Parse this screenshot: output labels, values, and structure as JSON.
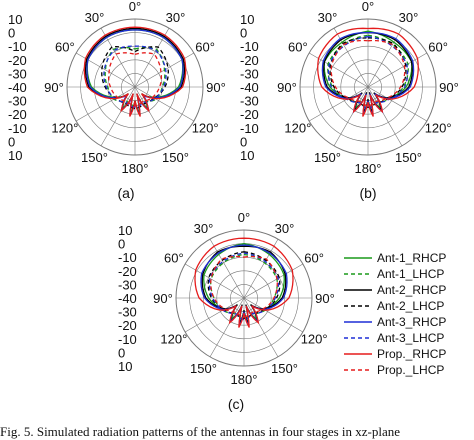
{
  "chart_data": [
    {
      "type": "polar-line",
      "panel": "(a)",
      "r_ticks": [
        "10",
        "0",
        "-10",
        "-20",
        "-30",
        "-40",
        "-30",
        "-20",
        "-10",
        "0",
        "10"
      ],
      "r_range": [
        -40,
        10
      ],
      "angle_labels": [
        "0°",
        "30°",
        "60°",
        "90°",
        "120°",
        "150°",
        "180°",
        "150°",
        "120°",
        "90°",
        "60°",
        "30°"
      ],
      "series": [
        {
          "key": "ant1_rhcp",
          "angles": [
            0,
            30,
            60,
            90,
            120,
            135,
            150,
            165,
            170,
            180,
            190,
            195,
            210,
            225,
            240,
            270,
            300,
            330,
            360
          ],
          "values": [
            2,
            2,
            0,
            -8,
            -25,
            -32,
            -22,
            -34,
            -20,
            -30,
            -20,
            -34,
            -22,
            -32,
            -25,
            -8,
            0,
            2,
            2
          ]
        },
        {
          "key": "ant1_lhcp",
          "angles": [
            0,
            30,
            60,
            90,
            120,
            150,
            180,
            210,
            240,
            270,
            300,
            330,
            360
          ],
          "values": [
            -12,
            -8,
            -15,
            -20,
            -22,
            -28,
            -26,
            -28,
            -22,
            -20,
            -15,
            -8,
            -12
          ]
        },
        {
          "key": "ant2_rhcp",
          "angles": [
            0,
            30,
            60,
            90,
            120,
            135,
            150,
            165,
            170,
            180,
            190,
            195,
            210,
            225,
            240,
            270,
            300,
            330,
            360
          ],
          "values": [
            3,
            3,
            1,
            -6,
            -24,
            -33,
            -20,
            -35,
            -19,
            -30,
            -19,
            -35,
            -20,
            -33,
            -24,
            -6,
            1,
            3,
            3
          ]
        },
        {
          "key": "ant2_lhcp",
          "angles": [
            0,
            30,
            60,
            90,
            120,
            150,
            180,
            210,
            240,
            270,
            300,
            330,
            360
          ],
          "values": [
            -14,
            -6,
            -12,
            -18,
            -24,
            -26,
            -24,
            -26,
            -24,
            -18,
            -12,
            -6,
            -14
          ]
        },
        {
          "key": "ant3_rhcp",
          "angles": [
            0,
            30,
            60,
            90,
            120,
            135,
            150,
            165,
            170,
            180,
            190,
            195,
            210,
            225,
            240,
            270,
            300,
            330,
            360
          ],
          "values": [
            2,
            2,
            0,
            -7,
            -24,
            -31,
            -21,
            -33,
            -19,
            -29,
            -19,
            -33,
            -21,
            -31,
            -24,
            -7,
            0,
            2,
            2
          ]
        },
        {
          "key": "ant3_lhcp",
          "angles": [
            0,
            30,
            60,
            90,
            120,
            150,
            180,
            210,
            240,
            270,
            300,
            330,
            360
          ],
          "values": [
            -10,
            -9,
            -14,
            -19,
            -23,
            -27,
            -25,
            -27,
            -23,
            -19,
            -14,
            -9,
            -10
          ]
        },
        {
          "key": "prop_rhcp",
          "angles": [
            0,
            30,
            60,
            90,
            120,
            135,
            150,
            165,
            170,
            180,
            190,
            195,
            210,
            225,
            240,
            270,
            300,
            330,
            360
          ],
          "values": [
            4,
            4,
            2,
            -5,
            -23,
            -33,
            -20,
            -35,
            -18,
            -30,
            -18,
            -35,
            -20,
            -33,
            -23,
            -5,
            2,
            4,
            4
          ]
        },
        {
          "key": "prop_lhcp",
          "angles": [
            0,
            30,
            60,
            90,
            120,
            150,
            180,
            210,
            240,
            270,
            300,
            330,
            360
          ],
          "values": [
            -16,
            -12,
            -18,
            -22,
            -25,
            -28,
            -26,
            -28,
            -25,
            -22,
            -18,
            -12,
            -16
          ]
        }
      ]
    },
    {
      "type": "polar-line",
      "panel": "(b)",
      "r_ticks": [
        "10",
        "0",
        "-10",
        "-20",
        "-30",
        "-40",
        "-30",
        "-20",
        "-10",
        "0",
        "10"
      ],
      "r_range": [
        -40,
        10
      ],
      "angle_labels": [
        "0°",
        "30°",
        "60°",
        "90°",
        "120°",
        "150°",
        "180°",
        "150°",
        "120°",
        "90°",
        "60°",
        "30°"
      ],
      "series": [
        {
          "key": "ant1_rhcp",
          "angles": [
            0,
            30,
            60,
            90,
            120,
            135,
            150,
            165,
            170,
            180,
            190,
            195,
            210,
            225,
            240,
            270,
            300,
            330,
            360
          ],
          "values": [
            1,
            -2,
            -3,
            -12,
            -24,
            -32,
            -22,
            -34,
            -21,
            -31,
            -21,
            -34,
            -22,
            -32,
            -24,
            -12,
            -3,
            -2,
            1
          ]
        },
        {
          "key": "ant1_lhcp",
          "angles": [
            0,
            30,
            60,
            90,
            120,
            150,
            180,
            210,
            240,
            270,
            300,
            330,
            360
          ],
          "values": [
            -2,
            -4,
            -6,
            -14,
            -22,
            -28,
            -26,
            -28,
            -22,
            -14,
            -6,
            -4,
            -2
          ]
        },
        {
          "key": "ant2_rhcp",
          "angles": [
            0,
            30,
            60,
            90,
            120,
            135,
            150,
            165,
            170,
            180,
            190,
            195,
            210,
            225,
            240,
            270,
            300,
            330,
            360
          ],
          "values": [
            0,
            0,
            -3,
            -10,
            -24,
            -34,
            -20,
            -36,
            -20,
            -31,
            -20,
            -36,
            -20,
            -34,
            -24,
            -10,
            -3,
            0,
            0
          ]
        },
        {
          "key": "ant2_lhcp",
          "angles": [
            0,
            30,
            60,
            90,
            120,
            150,
            180,
            210,
            240,
            270,
            300,
            330,
            360
          ],
          "values": [
            -4,
            -3,
            -8,
            -15,
            -23,
            -27,
            -25,
            -27,
            -23,
            -15,
            -8,
            -3,
            -4
          ]
        },
        {
          "key": "ant3_rhcp",
          "angles": [
            0,
            30,
            60,
            90,
            120,
            135,
            150,
            165,
            170,
            180,
            190,
            195,
            210,
            225,
            240,
            270,
            300,
            330,
            360
          ],
          "values": [
            0,
            1,
            -2,
            -9,
            -23,
            -33,
            -19,
            -35,
            -19,
            -30,
            -19,
            -35,
            -19,
            -33,
            -23,
            -9,
            -2,
            1,
            0
          ]
        },
        {
          "key": "ant3_lhcp",
          "angles": [
            0,
            30,
            60,
            90,
            120,
            150,
            180,
            210,
            240,
            270,
            300,
            330,
            360
          ],
          "values": [
            -3,
            -5,
            -7,
            -13,
            -22,
            -27,
            -24,
            -27,
            -22,
            -13,
            -7,
            -5,
            -3
          ]
        },
        {
          "key": "prop_rhcp",
          "angles": [
            0,
            30,
            60,
            90,
            120,
            135,
            150,
            165,
            170,
            180,
            190,
            195,
            210,
            225,
            240,
            270,
            300,
            330,
            360
          ],
          "values": [
            3,
            5,
            2,
            -6,
            -22,
            -32,
            -19,
            -34,
            -18,
            -29,
            -18,
            -34,
            -19,
            -32,
            -22,
            -6,
            2,
            5,
            3
          ]
        },
        {
          "key": "prop_lhcp",
          "angles": [
            0,
            30,
            60,
            90,
            120,
            150,
            180,
            210,
            240,
            270,
            300,
            330,
            360
          ],
          "values": [
            -6,
            -4,
            -9,
            -16,
            -24,
            -28,
            -26,
            -28,
            -24,
            -16,
            -9,
            -4,
            -6
          ]
        }
      ]
    },
    {
      "type": "polar-line",
      "panel": "(c)",
      "r_ticks": [
        "10",
        "0",
        "-10",
        "-20",
        "-30",
        "-40",
        "-30",
        "-20",
        "-10",
        "0",
        "10"
      ],
      "r_range": [
        -40,
        10
      ],
      "angle_labels": [
        "0°",
        "30°",
        "60°",
        "90°",
        "120°",
        "150°",
        "180°",
        "150°",
        "120°",
        "90°",
        "60°",
        "30°"
      ],
      "series": [
        {
          "key": "ant1_rhcp",
          "angles": [
            0,
            30,
            60,
            90,
            120,
            135,
            150,
            165,
            170,
            180,
            190,
            195,
            210,
            225,
            240,
            270,
            300,
            330,
            360
          ],
          "values": [
            0,
            -3,
            -6,
            -14,
            -24,
            -32,
            -22,
            -34,
            -21,
            -31,
            -21,
            -34,
            -22,
            -32,
            -24,
            -14,
            -6,
            -3,
            0
          ]
        },
        {
          "key": "ant1_lhcp",
          "angles": [
            0,
            30,
            60,
            90,
            120,
            150,
            180,
            210,
            240,
            270,
            300,
            330,
            360
          ],
          "values": [
            -8,
            -10,
            -12,
            -18,
            -22,
            -27,
            -25,
            -27,
            -22,
            -18,
            -12,
            -10,
            -8
          ]
        },
        {
          "key": "ant2_rhcp",
          "angles": [
            0,
            30,
            60,
            90,
            120,
            135,
            150,
            165,
            170,
            180,
            190,
            195,
            210,
            225,
            240,
            270,
            300,
            330,
            360
          ],
          "values": [
            -2,
            -1,
            -5,
            -12,
            -24,
            -33,
            -20,
            -35,
            -20,
            -31,
            -20,
            -35,
            -20,
            -33,
            -24,
            -12,
            -5,
            -1,
            -2
          ]
        },
        {
          "key": "ant2_lhcp",
          "angles": [
            0,
            30,
            60,
            90,
            120,
            150,
            180,
            210,
            240,
            270,
            300,
            330,
            360
          ],
          "values": [
            -6,
            -8,
            -10,
            -16,
            -23,
            -27,
            -25,
            -27,
            -23,
            -16,
            -10,
            -8,
            -6
          ]
        },
        {
          "key": "ant3_rhcp",
          "angles": [
            0,
            30,
            60,
            90,
            120,
            135,
            150,
            165,
            170,
            180,
            190,
            195,
            210,
            225,
            240,
            270,
            300,
            330,
            360
          ],
          "values": [
            -1,
            -2,
            -4,
            -11,
            -23,
            -32,
            -20,
            -34,
            -19,
            -30,
            -19,
            -34,
            -20,
            -32,
            -23,
            -11,
            -4,
            -2,
            -1
          ]
        },
        {
          "key": "ant3_lhcp",
          "angles": [
            0,
            30,
            60,
            90,
            120,
            150,
            180,
            210,
            240,
            270,
            300,
            330,
            360
          ],
          "values": [
            -7,
            -9,
            -11,
            -17,
            -22,
            -27,
            -24,
            -27,
            -22,
            -17,
            -11,
            -9,
            -7
          ]
        },
        {
          "key": "prop_rhcp",
          "angles": [
            0,
            30,
            60,
            90,
            120,
            135,
            150,
            165,
            170,
            180,
            190,
            195,
            210,
            225,
            240,
            270,
            300,
            330,
            360
          ],
          "values": [
            4,
            4,
            1,
            -7,
            -22,
            -32,
            -19,
            -34,
            -18,
            -29,
            -18,
            -34,
            -19,
            -32,
            -22,
            -7,
            1,
            4,
            4
          ]
        },
        {
          "key": "prop_lhcp",
          "angles": [
            0,
            30,
            60,
            90,
            120,
            150,
            180,
            210,
            240,
            270,
            300,
            330,
            360
          ],
          "values": [
            -10,
            -7,
            -12,
            -18,
            -24,
            -28,
            -26,
            -28,
            -24,
            -18,
            -12,
            -7,
            -10
          ]
        }
      ]
    }
  ],
  "legend": [
    {
      "key": "ant1_rhcp",
      "label": "Ant-1_RHCP",
      "color": "#1a9a1a",
      "dashed": false
    },
    {
      "key": "ant1_lhcp",
      "label": "Ant-1_LHCP",
      "color": "#1a9a1a",
      "dashed": true
    },
    {
      "key": "ant2_rhcp",
      "label": "Ant-2_RHCP",
      "color": "#000000",
      "dashed": false
    },
    {
      "key": "ant2_lhcp",
      "label": "Ant-2_LHCP",
      "color": "#000000",
      "dashed": true
    },
    {
      "key": "ant3_rhcp",
      "label": "Ant-3_RHCP",
      "color": "#1f2fd6",
      "dashed": false
    },
    {
      "key": "ant3_lhcp",
      "label": "Ant-3_LHCP",
      "color": "#1f2fd6",
      "dashed": true
    },
    {
      "key": "prop_rhcp",
      "label": "Prop._RHCP",
      "color": "#e51c1c",
      "dashed": false
    },
    {
      "key": "prop_lhcp",
      "label": "Prop._LHCP",
      "color": "#e51c1c",
      "dashed": true
    }
  ],
  "caption": "Fig. 5.   Simulated radiation patterns of the antennas in four stages in xz-plane"
}
